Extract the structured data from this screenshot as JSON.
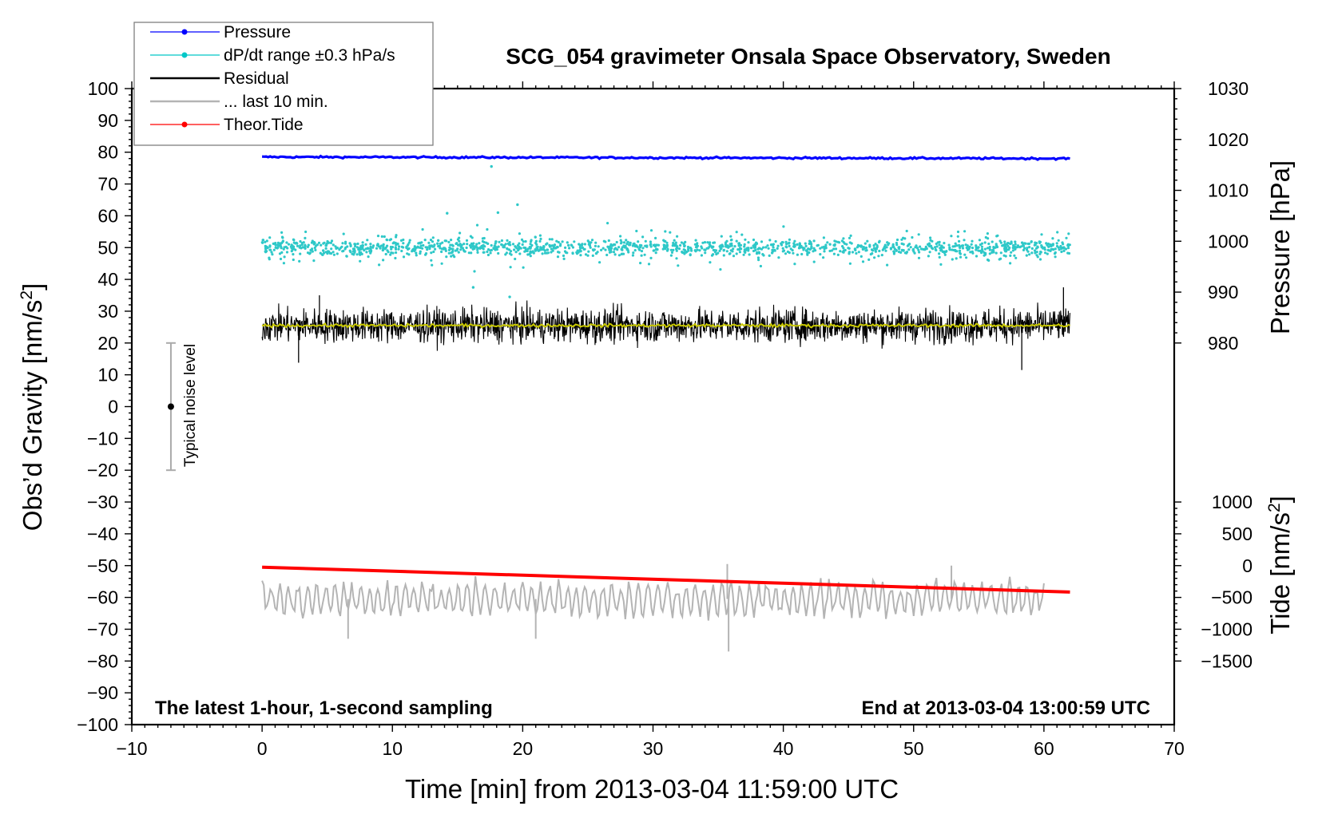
{
  "chart_data": {
    "type": "line",
    "title": "SCG_054 gravimeter Onsala Space Observatory, Sweden",
    "xlabel": "Time [min] from 2013-03-04 11:59:00 UTC",
    "ylabel": "Obs’d Gravity [nm/s",
    "ylabel_sup": "2",
    "ylabel_end": "]",
    "y2label_pressure": "Pressure [hPa]",
    "y2label_tide": "Tide [nm/s",
    "y2label_tide_sup": "2",
    "y2label_tide_end": "]",
    "xlim": [
      -10,
      70
    ],
    "ylim": [
      -100,
      100
    ],
    "pressure_axis_range": [
      980,
      1030
    ],
    "tide_axis_range": [
      -1500,
      1000
    ],
    "x_ticks": [
      "−10",
      "0",
      "10",
      "20",
      "30",
      "40",
      "50",
      "60",
      "70"
    ],
    "y_ticks": [
      "100",
      "90",
      "80",
      "70",
      "60",
      "50",
      "40",
      "30",
      "20",
      "10",
      "0",
      "−10",
      "−20",
      "−30",
      "−40",
      "−50",
      "−60",
      "−70",
      "−80",
      "−90",
      "−100"
    ],
    "pressure_ticks": [
      "1030",
      "1020",
      "1010",
      "1000",
      "990",
      "980"
    ],
    "tide_ticks": [
      "1000",
      "500",
      "0",
      "−500",
      "−1000",
      "−1500"
    ],
    "annotation_left": "The latest 1-hour, 1-second sampling",
    "annotation_right": "End at 2013-03-04 13:00:59 UTC",
    "noise_label": "Typical noise level",
    "noise_bar": {
      "x": -7,
      "center": 0,
      "low": -20,
      "high": 20
    },
    "legend": [
      {
        "label": "Pressure",
        "color": "#0000ff",
        "style": "line-dot"
      },
      {
        "label": "dP/dt range ±0.3 hPa/s",
        "color": "#00c8c8",
        "style": "line-dot"
      },
      {
        "label": "Residual",
        "color": "#000000",
        "style": "line"
      },
      {
        "label": "... last 10 min.",
        "color": "#b4b4b4",
        "style": "line"
      },
      {
        "label": "Theor.Tide",
        "color": "#ff0000",
        "style": "line-dot"
      }
    ],
    "series": [
      {
        "name": "Pressure",
        "color": "#0000ff",
        "x_range": [
          0,
          62
        ],
        "y_start": 78.5,
        "y_end": 78.0,
        "noise": 0.2
      },
      {
        "name": "dP/dt",
        "color": "#2ec8c8",
        "x_range": [
          0,
          62
        ],
        "y_center": 50,
        "spread": 5,
        "outliers": [
          [
            17.6,
            75.5
          ],
          [
            19.6,
            63.5
          ],
          [
            18.1,
            61
          ],
          [
            14.2,
            60.8
          ],
          [
            19,
            34.5
          ],
          [
            16.2,
            37.5
          ]
        ]
      },
      {
        "name": "Residual",
        "color": "#000000",
        "x_range": [
          0,
          62
        ],
        "y_center": 25.5,
        "spread": 10,
        "extremes": [
          [
            58.3,
            11.5
          ],
          [
            2.8,
            13.8
          ],
          [
            61.5,
            37.5
          ],
          [
            4.4,
            35
          ]
        ]
      },
      {
        "name": "Residual smoothed",
        "color": "#c8c800",
        "x_range": [
          0,
          62
        ],
        "y_center": 25.5
      },
      {
        "name": "... last 10 min.",
        "color": "#b4b4b4",
        "x_range": [
          0,
          60
        ],
        "y_center": -60.5,
        "spread": 7,
        "extremes": [
          [
            35.8,
            -77
          ],
          [
            35.7,
            -49.5
          ],
          [
            52.9,
            -50
          ],
          [
            6.6,
            -73
          ],
          [
            21,
            -73
          ]
        ]
      },
      {
        "name": "Theor.Tide",
        "color": "#ff0000",
        "x": [
          0,
          62
        ],
        "y": [
          -50.5,
          -58.3
        ]
      }
    ]
  }
}
